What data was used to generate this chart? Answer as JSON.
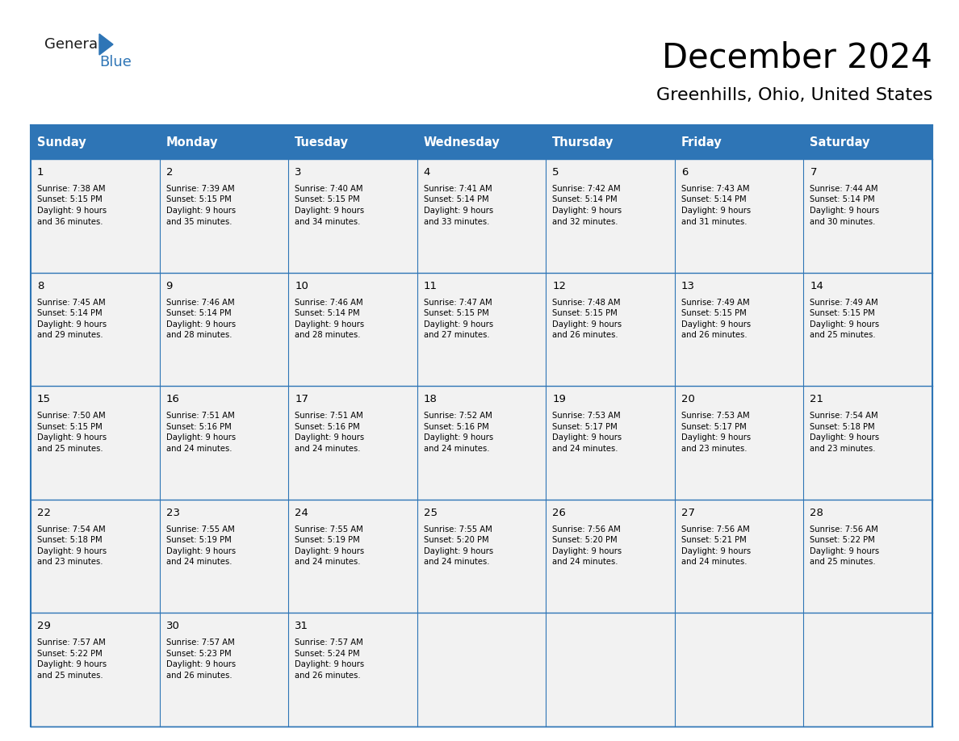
{
  "title": "December 2024",
  "subtitle": "Greenhills, Ohio, United States",
  "header_bg": "#2E75B6",
  "header_text_color": "#FFFFFF",
  "header_font_size": 10.5,
  "day_num_font_size": 9.5,
  "cell_font_size": 7.2,
  "title_font_size": 30,
  "subtitle_font_size": 16,
  "days_of_week": [
    "Sunday",
    "Monday",
    "Tuesday",
    "Wednesday",
    "Thursday",
    "Friday",
    "Saturday"
  ],
  "weeks": [
    [
      {
        "day": 1,
        "sunrise": "7:38 AM",
        "sunset": "5:15 PM",
        "daylight_hours": 9,
        "daylight_minutes": 36
      },
      {
        "day": 2,
        "sunrise": "7:39 AM",
        "sunset": "5:15 PM",
        "daylight_hours": 9,
        "daylight_minutes": 35
      },
      {
        "day": 3,
        "sunrise": "7:40 AM",
        "sunset": "5:15 PM",
        "daylight_hours": 9,
        "daylight_minutes": 34
      },
      {
        "day": 4,
        "sunrise": "7:41 AM",
        "sunset": "5:14 PM",
        "daylight_hours": 9,
        "daylight_minutes": 33
      },
      {
        "day": 5,
        "sunrise": "7:42 AM",
        "sunset": "5:14 PM",
        "daylight_hours": 9,
        "daylight_minutes": 32
      },
      {
        "day": 6,
        "sunrise": "7:43 AM",
        "sunset": "5:14 PM",
        "daylight_hours": 9,
        "daylight_minutes": 31
      },
      {
        "day": 7,
        "sunrise": "7:44 AM",
        "sunset": "5:14 PM",
        "daylight_hours": 9,
        "daylight_minutes": 30
      }
    ],
    [
      {
        "day": 8,
        "sunrise": "7:45 AM",
        "sunset": "5:14 PM",
        "daylight_hours": 9,
        "daylight_minutes": 29
      },
      {
        "day": 9,
        "sunrise": "7:46 AM",
        "sunset": "5:14 PM",
        "daylight_hours": 9,
        "daylight_minutes": 28
      },
      {
        "day": 10,
        "sunrise": "7:46 AM",
        "sunset": "5:14 PM",
        "daylight_hours": 9,
        "daylight_minutes": 28
      },
      {
        "day": 11,
        "sunrise": "7:47 AM",
        "sunset": "5:15 PM",
        "daylight_hours": 9,
        "daylight_minutes": 27
      },
      {
        "day": 12,
        "sunrise": "7:48 AM",
        "sunset": "5:15 PM",
        "daylight_hours": 9,
        "daylight_minutes": 26
      },
      {
        "day": 13,
        "sunrise": "7:49 AM",
        "sunset": "5:15 PM",
        "daylight_hours": 9,
        "daylight_minutes": 26
      },
      {
        "day": 14,
        "sunrise": "7:49 AM",
        "sunset": "5:15 PM",
        "daylight_hours": 9,
        "daylight_minutes": 25
      }
    ],
    [
      {
        "day": 15,
        "sunrise": "7:50 AM",
        "sunset": "5:15 PM",
        "daylight_hours": 9,
        "daylight_minutes": 25
      },
      {
        "day": 16,
        "sunrise": "7:51 AM",
        "sunset": "5:16 PM",
        "daylight_hours": 9,
        "daylight_minutes": 24
      },
      {
        "day": 17,
        "sunrise": "7:51 AM",
        "sunset": "5:16 PM",
        "daylight_hours": 9,
        "daylight_minutes": 24
      },
      {
        "day": 18,
        "sunrise": "7:52 AM",
        "sunset": "5:16 PM",
        "daylight_hours": 9,
        "daylight_minutes": 24
      },
      {
        "day": 19,
        "sunrise": "7:53 AM",
        "sunset": "5:17 PM",
        "daylight_hours": 9,
        "daylight_minutes": 24
      },
      {
        "day": 20,
        "sunrise": "7:53 AM",
        "sunset": "5:17 PM",
        "daylight_hours": 9,
        "daylight_minutes": 23
      },
      {
        "day": 21,
        "sunrise": "7:54 AM",
        "sunset": "5:18 PM",
        "daylight_hours": 9,
        "daylight_minutes": 23
      }
    ],
    [
      {
        "day": 22,
        "sunrise": "7:54 AM",
        "sunset": "5:18 PM",
        "daylight_hours": 9,
        "daylight_minutes": 23
      },
      {
        "day": 23,
        "sunrise": "7:55 AM",
        "sunset": "5:19 PM",
        "daylight_hours": 9,
        "daylight_minutes": 24
      },
      {
        "day": 24,
        "sunrise": "7:55 AM",
        "sunset": "5:19 PM",
        "daylight_hours": 9,
        "daylight_minutes": 24
      },
      {
        "day": 25,
        "sunrise": "7:55 AM",
        "sunset": "5:20 PM",
        "daylight_hours": 9,
        "daylight_minutes": 24
      },
      {
        "day": 26,
        "sunrise": "7:56 AM",
        "sunset": "5:20 PM",
        "daylight_hours": 9,
        "daylight_minutes": 24
      },
      {
        "day": 27,
        "sunrise": "7:56 AM",
        "sunset": "5:21 PM",
        "daylight_hours": 9,
        "daylight_minutes": 24
      },
      {
        "day": 28,
        "sunrise": "7:56 AM",
        "sunset": "5:22 PM",
        "daylight_hours": 9,
        "daylight_minutes": 25
      }
    ],
    [
      {
        "day": 29,
        "sunrise": "7:57 AM",
        "sunset": "5:22 PM",
        "daylight_hours": 9,
        "daylight_minutes": 25
      },
      {
        "day": 30,
        "sunrise": "7:57 AM",
        "sunset": "5:23 PM",
        "daylight_hours": 9,
        "daylight_minutes": 26
      },
      {
        "day": 31,
        "sunrise": "7:57 AM",
        "sunset": "5:24 PM",
        "daylight_hours": 9,
        "daylight_minutes": 26
      },
      null,
      null,
      null,
      null
    ]
  ],
  "cell_bg_color": "#F2F2F2",
  "grid_line_color": "#2E75B6",
  "text_color": "#000000",
  "logo_general_color": "#1a1a1a",
  "logo_blue_color": "#2E75B6"
}
